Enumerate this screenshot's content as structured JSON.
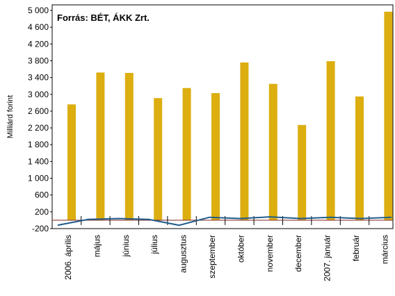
{
  "chart_data": {
    "type": "bar",
    "annotation": "Forrás:  BÉT, ÁKK Zrt.",
    "y_label": "Milliárd forint",
    "categories": [
      "2006. április",
      "május",
      "június",
      "július",
      "augusztus",
      "szeptember",
      "október",
      "november",
      "december",
      "2007. január",
      "február",
      "március"
    ],
    "series": [
      {
        "type": "bar",
        "color": "#dcae10",
        "values": [
          2760,
          3520,
          3510,
          2910,
          3150,
          3030,
          3760,
          3250,
          2270,
          3790,
          2950,
          4970
        ]
      },
      {
        "type": "line",
        "color": "#1f5b8a",
        "values": [
          -120,
          20,
          40,
          20,
          -120,
          70,
          40,
          80,
          40,
          70,
          40,
          70
        ]
      }
    ],
    "ylim": [
      -200,
      5000
    ],
    "yticks": [
      -200,
      200,
      600,
      {
        "value": 1000,
        "label": "1 000"
      },
      {
        "value": 1400,
        "label": "1 400"
      },
      {
        "value": 1800,
        "label": "1 800"
      },
      {
        "value": 2200,
        "label": "2 200"
      },
      {
        "value": 2600,
        "label": "2 600"
      },
      {
        "value": 3000,
        "label": "3 000"
      },
      {
        "value": 3400,
        "label": "3 400"
      },
      {
        "value": 3800,
        "label": "3 800"
      },
      {
        "value": 4200,
        "label": "4 200"
      },
      {
        "value": 4600,
        "label": "4 600"
      },
      {
        "value": 5000,
        "label": "5 000"
      }
    ],
    "zero_line_color": "#8b3a3a"
  }
}
